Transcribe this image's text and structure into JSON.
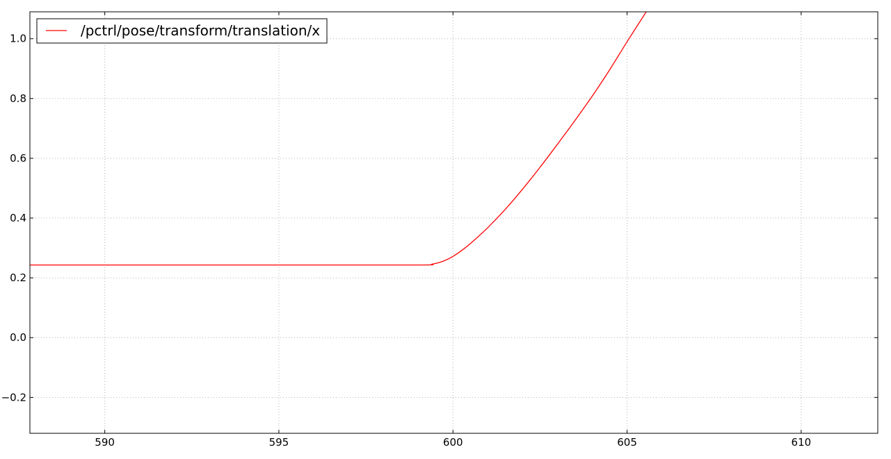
{
  "chart_data": {
    "type": "line",
    "title": "",
    "xlabel": "",
    "ylabel": "",
    "xlim": [
      587.85,
      612.2
    ],
    "ylim": [
      -0.32,
      1.09
    ],
    "xticks": [
      590,
      595,
      600,
      605,
      610
    ],
    "xtick_labels": [
      "590",
      "595",
      "600",
      "605",
      "610"
    ],
    "yticks": [
      -0.2,
      0.0,
      0.2,
      0.4,
      0.6,
      0.8,
      1.0
    ],
    "ytick_labels": [
      "−0.2",
      "0.0",
      "0.2",
      "0.4",
      "0.6",
      "0.8",
      "1.0"
    ],
    "grid": true,
    "legend_position": "top-left",
    "series": [
      {
        "name": "/pctrl/pose/transform/translation/x",
        "color": "#ff0000",
        "x": [
          587.85,
          590,
          595,
          599.0,
          599.4,
          599.7,
          600.0,
          600.3,
          600.6,
          601.0,
          601.5,
          602.0,
          602.5,
          603.0,
          603.5,
          604.0,
          604.5,
          605.0,
          605.55
        ],
        "y": [
          0.243,
          0.243,
          0.243,
          0.243,
          0.246,
          0.255,
          0.272,
          0.296,
          0.325,
          0.368,
          0.429,
          0.497,
          0.57,
          0.647,
          0.726,
          0.808,
          0.896,
          0.99,
          1.09
        ]
      }
    ]
  }
}
